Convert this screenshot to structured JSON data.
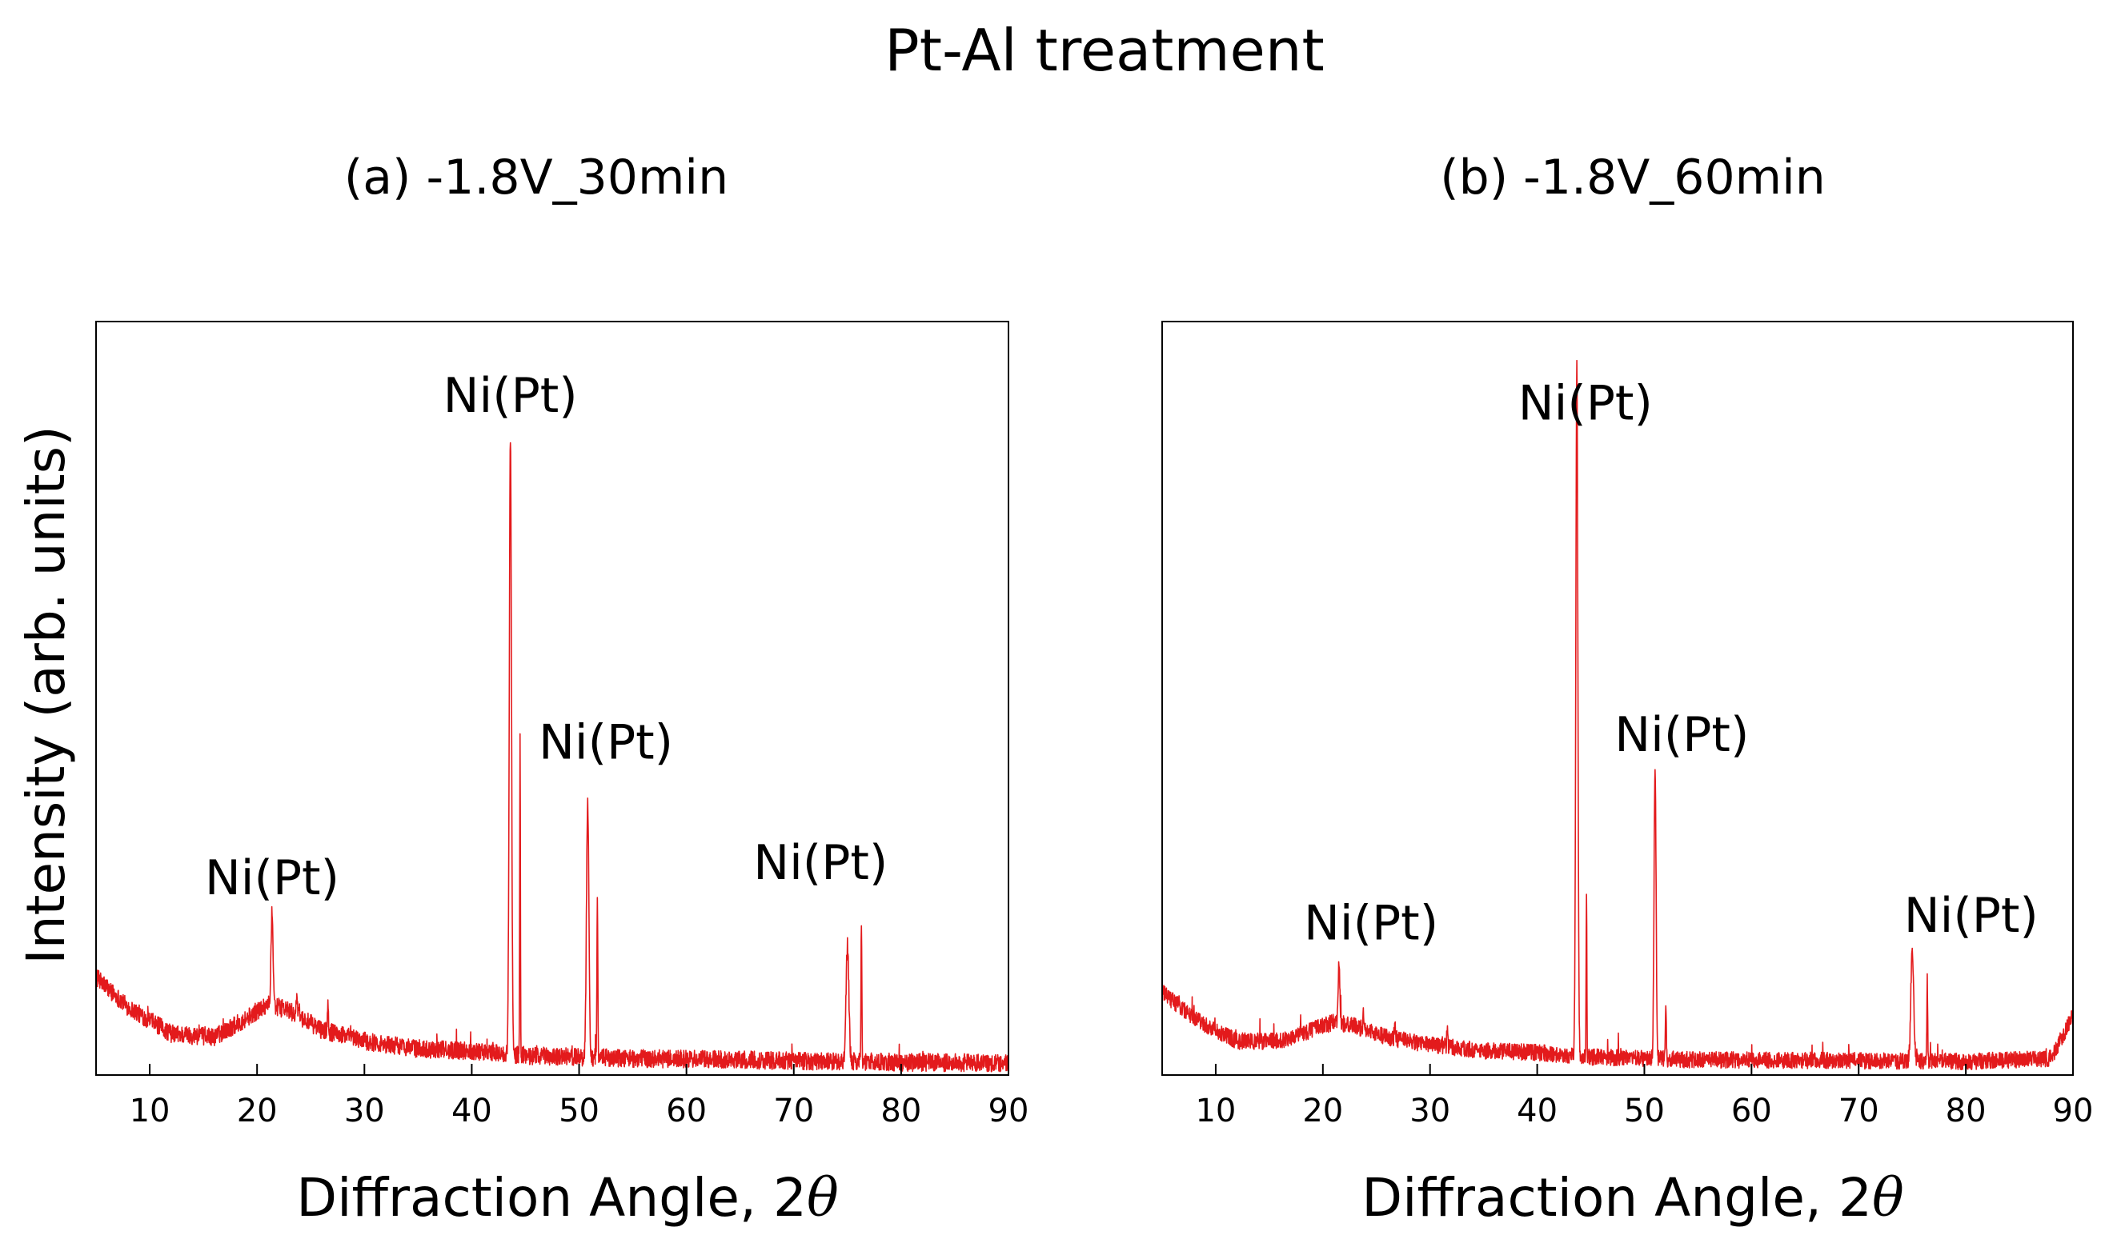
{
  "chart_data": [
    {
      "type": "line",
      "title": "Pt-Al treatment",
      "subtitle": "(a) -1.8V_30min",
      "xlabel": "Diffraction Angle, 2θ",
      "xlabel_text": "Diffraction Angle, 2",
      "xlabel_symbol": "θ",
      "ylabel": "Intensity (arb. units)",
      "xlim": [
        5,
        90
      ],
      "ylim": [
        0,
        100
      ],
      "xticks": [
        10,
        20,
        30,
        40,
        50,
        60,
        70,
        80,
        90
      ],
      "grid": false,
      "series_color": "#e31a1c",
      "baseline": {
        "points": [
          [
            5,
            13
          ],
          [
            8,
            9
          ],
          [
            12,
            5.5
          ],
          [
            16,
            5
          ],
          [
            19,
            7.5
          ],
          [
            21,
            9.5
          ],
          [
            23,
            8.5
          ],
          [
            26,
            6
          ],
          [
            30,
            4.5
          ],
          [
            35,
            3.5
          ],
          [
            40,
            3.2
          ],
          [
            45,
            2.6
          ],
          [
            50,
            2.4
          ],
          [
            55,
            2.2
          ],
          [
            60,
            2.1
          ],
          [
            70,
            1.9
          ],
          [
            80,
            1.7
          ],
          [
            90,
            1.6
          ]
        ],
        "noise": 1.2
      },
      "peaks": [
        {
          "x": 21.4,
          "height": 12.5,
          "width": 0.22
        },
        {
          "x": 23.7,
          "height": 2.5,
          "width": 0.15
        },
        {
          "x": 26.6,
          "height": 3.5,
          "width": 0.12
        },
        {
          "x": 43.6,
          "height": 82,
          "width": 0.24
        },
        {
          "x": 44.5,
          "height": 42,
          "width": 0.08
        },
        {
          "x": 50.8,
          "height": 34,
          "width": 0.26
        },
        {
          "x": 51.7,
          "height": 21,
          "width": 0.1
        },
        {
          "x": 75.0,
          "height": 15.5,
          "width": 0.3
        },
        {
          "x": 76.3,
          "height": 18,
          "width": 0.1
        }
      ],
      "annotations": [
        {
          "text": "Ni(Pt)",
          "x": 21.4,
          "y": 24
        },
        {
          "text": "Ni(Pt)",
          "x": 43.6,
          "y": 88
        },
        {
          "text": "Ni(Pt)",
          "x": 52.5,
          "y": 42
        },
        {
          "text": "Ni(Pt)",
          "x": 72.5,
          "y": 26
        }
      ]
    },
    {
      "type": "line",
      "title": "Pt-Al treatment",
      "subtitle": "(b) -1.8V_60min",
      "xlabel": "Diffraction Angle, 2θ",
      "xlabel_text": "Diffraction Angle, 2",
      "xlabel_symbol": "θ",
      "ylabel": "Intensity (arb. units)",
      "xlim": [
        5,
        90
      ],
      "ylim": [
        0,
        100
      ],
      "xticks": [
        10,
        20,
        30,
        40,
        50,
        60,
        70,
        80,
        90
      ],
      "grid": false,
      "series_color": "#e31a1c",
      "baseline": {
        "points": [
          [
            5,
            11
          ],
          [
            8,
            7.5
          ],
          [
            12,
            4.5
          ],
          [
            16,
            4.5
          ],
          [
            19,
            6
          ],
          [
            21,
            7
          ],
          [
            23,
            6.5
          ],
          [
            26,
            5
          ],
          [
            30,
            4
          ],
          [
            35,
            3.2
          ],
          [
            40,
            3
          ],
          [
            45,
            2.4
          ],
          [
            50,
            2.2
          ],
          [
            55,
            2
          ],
          [
            60,
            2
          ],
          [
            70,
            1.9
          ],
          [
            80,
            1.8
          ],
          [
            88,
            2.2
          ],
          [
            90,
            8
          ]
        ],
        "noise": 1.1
      },
      "peaks": [
        {
          "x": 21.5,
          "height": 7.5,
          "width": 0.2
        },
        {
          "x": 23.8,
          "height": 2,
          "width": 0.15
        },
        {
          "x": 26.7,
          "height": 2,
          "width": 0.12
        },
        {
          "x": 31.6,
          "height": 2.5,
          "width": 0.1
        },
        {
          "x": 43.7,
          "height": 92,
          "width": 0.22
        },
        {
          "x": 44.6,
          "height": 22,
          "width": 0.08
        },
        {
          "x": 51.0,
          "height": 39,
          "width": 0.22
        },
        {
          "x": 52.0,
          "height": 8,
          "width": 0.1
        },
        {
          "x": 75.0,
          "height": 15,
          "width": 0.3
        },
        {
          "x": 76.4,
          "height": 9,
          "width": 0.1
        }
      ],
      "annotations": [
        {
          "text": "Ni(Pt)",
          "x": 24.5,
          "y": 18
        },
        {
          "text": "Ni(Pt)",
          "x": 44.5,
          "y": 87
        },
        {
          "text": "Ni(Pt)",
          "x": 53.5,
          "y": 43
        },
        {
          "text": "Ni(Pt)",
          "x": 80.5,
          "y": 19
        }
      ]
    }
  ]
}
